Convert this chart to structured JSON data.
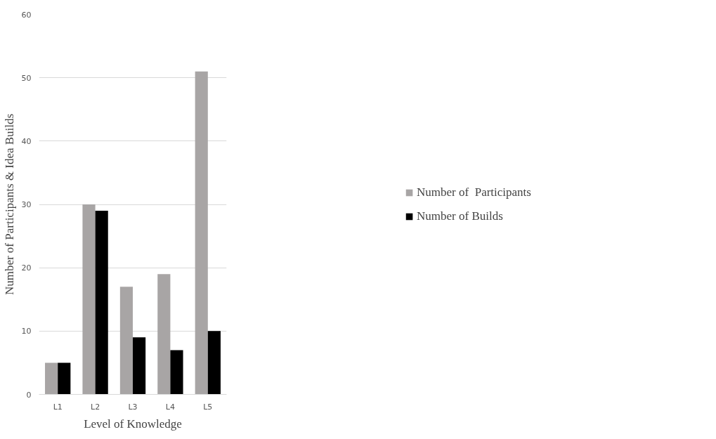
{
  "chart_data": {
    "type": "bar",
    "xlabel": "Level of Knowledge",
    "ylabel": "Number of Participants & Idea Builds",
    "categories": [
      "L1",
      "L2",
      "L3",
      "L4",
      "L5"
    ],
    "series": [
      {
        "name": "Number of  Participants",
        "color": "#a8a5a5",
        "values": [
          5,
          30,
          17,
          19,
          51
        ]
      },
      {
        "name": "Number of Builds",
        "color": "#000000",
        "values": [
          5,
          29,
          9,
          7,
          10
        ]
      }
    ],
    "ylim": [
      0,
      60
    ],
    "yticks": [
      0,
      10,
      20,
      30,
      40,
      50,
      60
    ],
    "grid": "y",
    "legend": "right"
  }
}
